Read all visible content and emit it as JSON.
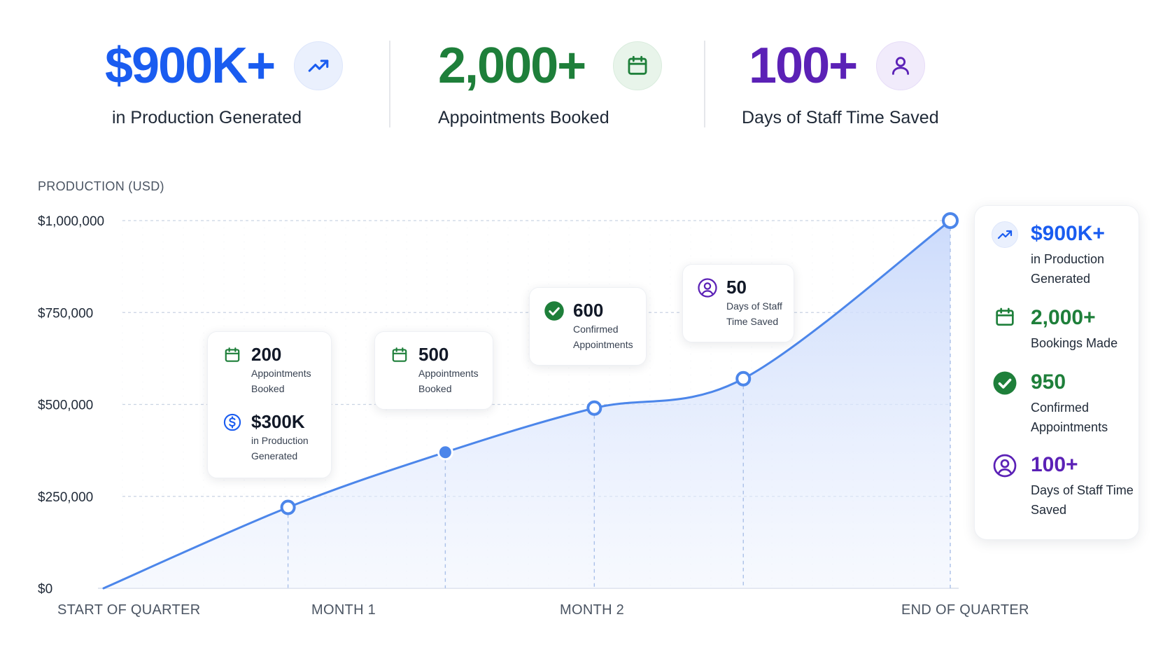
{
  "colors": {
    "blue": "#1a5cf0",
    "green": "#1e7f3a",
    "purple": "#5b21b6",
    "line": "#4c86ea",
    "area": "#dbe6fc"
  },
  "stats": [
    {
      "value": "$900K+",
      "label": "in Production Generated",
      "icon": "trend-up-icon",
      "color": "#1a5cf0"
    },
    {
      "value": "2,000+",
      "label": "Appointments Booked",
      "icon": "calendar-icon",
      "color": "#1e7f3a"
    },
    {
      "value": "100+",
      "label": "Days of Staff Time Saved",
      "icon": "user-icon",
      "color": "#5b21b6"
    }
  ],
  "callouts": {
    "month1a": {
      "items": [
        {
          "value": "200",
          "label": "Appointments Booked",
          "icon": "calendar-icon"
        },
        {
          "value": "$300K",
          "label": "in Production Generated",
          "icon": "dollar-icon"
        }
      ]
    },
    "month1b": {
      "items": [
        {
          "value": "500",
          "label": "Appointments Booked",
          "icon": "calendar-icon"
        }
      ]
    },
    "month2": {
      "items": [
        {
          "value": "600",
          "label": "Confirmed Appointments",
          "icon": "check-circle-icon"
        }
      ]
    },
    "month3": {
      "items": [
        {
          "value": "50",
          "label": "Days of Staff Time Saved",
          "icon": "user-circle-icon"
        }
      ]
    }
  },
  "summary": [
    {
      "value": "$900K+",
      "label": "in Production Generated",
      "icon": "trend-up-icon",
      "color": "#1a5cf0"
    },
    {
      "value": "2,000+",
      "label": "Bookings Made",
      "icon": "calendar-icon",
      "color": "#1e7f3a"
    },
    {
      "value": "950",
      "label": "Confirmed Appointments",
      "icon": "check-circle-icon",
      "color": "#1e7f3a"
    },
    {
      "value": "100+",
      "label": "Days of Staff Time Saved",
      "icon": "user-circle-icon",
      "color": "#5b21b6"
    }
  ],
  "chart_data": {
    "type": "area",
    "ylabel": "PRODUCTION (USD)",
    "ylim": [
      0,
      1000000
    ],
    "yticks": [
      {
        "value": 0,
        "label": "$0"
      },
      {
        "value": 250000,
        "label": "$250,000"
      },
      {
        "value": 500000,
        "label": "$500,000"
      },
      {
        "value": 750000,
        "label": "$750,000"
      },
      {
        "value": 1000000,
        "label": "$1,000,000"
      }
    ],
    "x_categories": [
      "START OF QUARTER",
      "MONTH 1",
      "MONTH 2",
      "END OF QUARTER"
    ],
    "grid": true,
    "series": [
      {
        "points": [
          {
            "x": 0.0,
            "y": 0
          },
          {
            "x": 0.2,
            "y": 220000
          },
          {
            "x": 0.39,
            "y": 370000
          },
          {
            "x": 0.57,
            "y": 490000
          },
          {
            "x": 0.75,
            "y": 570000
          },
          {
            "x": 1.0,
            "y": 1000000
          }
        ],
        "markers": [
          1,
          2,
          3,
          4,
          5
        ]
      }
    ]
  }
}
